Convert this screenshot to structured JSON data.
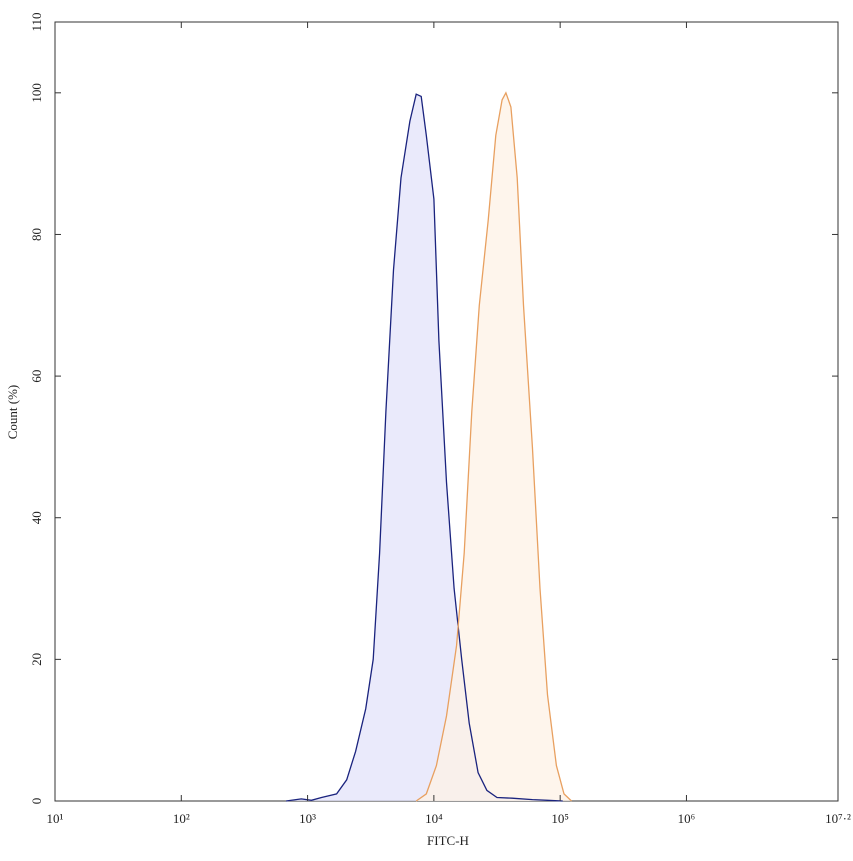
{
  "chart_data": {
    "type": "histogram-overlay",
    "x_label": "FITC-H",
    "y_label": "Count (%)",
    "xscale": "log",
    "xlim": [
      10,
      15848932
    ],
    "xticks": [
      {
        "value": 10,
        "label": "10¹"
      },
      {
        "value": 100,
        "label": "10²"
      },
      {
        "value": 1000,
        "label": "10³"
      },
      {
        "value": 10000,
        "label": "10⁴"
      },
      {
        "value": 100000,
        "label": "10⁵"
      },
      {
        "value": 1000000,
        "label": "10⁶"
      },
      {
        "value": 15848932,
        "label": "10⁷·²"
      }
    ],
    "ylim": [
      0,
      110
    ],
    "yticks": [
      0,
      20,
      40,
      60,
      80,
      100,
      110
    ],
    "series": [
      {
        "color": "#1a237e",
        "fill": "#e3e3fa",
        "x": [
          676,
          891,
          1072,
          1288,
          1698,
          2042,
          2399,
          2884,
          3311,
          3715,
          4169,
          4786,
          5495,
          6457,
          7244,
          7943,
          8710,
          10000,
          10965,
          12589,
          14454,
          16596,
          19055,
          22387,
          26303,
          31623,
          41687,
          60256,
          79433,
          104713
        ],
        "values": [
          0,
          0.3,
          0.1,
          0.5,
          1,
          3,
          7,
          13,
          20,
          35,
          55,
          75,
          88,
          96,
          99.8,
          99.5,
          94,
          85,
          65,
          45,
          30,
          20,
          11,
          4,
          1.5,
          0.5,
          0.4,
          0.2,
          0.1,
          0
        ]
      },
      {
        "color": "#e8a060",
        "fill": "#fdf1e6",
        "x": [
          7244,
          8710,
          10471,
          12589,
          15136,
          17378,
          19953,
          22909,
          26915,
          30903,
          34674,
          37154,
          40738,
          45709,
          51286,
          60256,
          69183,
          79433,
          93325,
          107152,
          123027
        ],
        "values": [
          0,
          1,
          5,
          12,
          22,
          35,
          55,
          70,
          82,
          94,
          99,
          100,
          98,
          88,
          70,
          50,
          30,
          15,
          5,
          1,
          0
        ]
      }
    ]
  }
}
